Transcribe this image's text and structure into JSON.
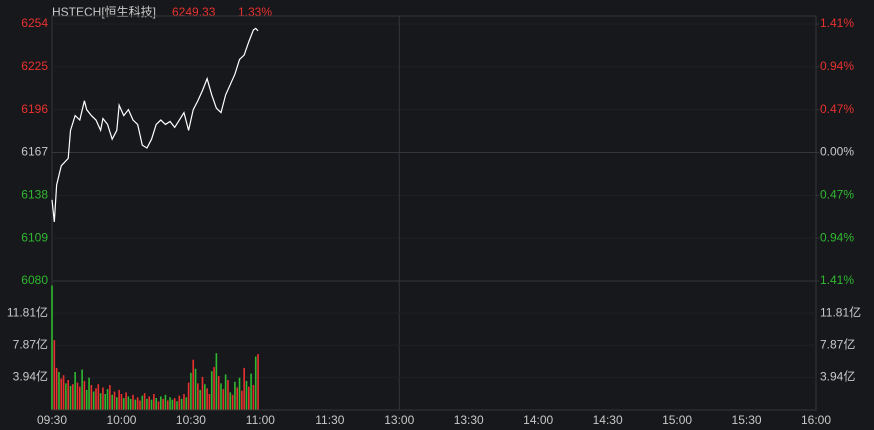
{
  "chart_data": [
    {
      "type": "line",
      "title": "HSTECH[恒生科技]",
      "last": 6249.33,
      "change": {
        "value": 1.33,
        "label": "1.33%"
      },
      "color": "#ffffff",
      "x": [
        0,
        1,
        2,
        4,
        7,
        8,
        10,
        12,
        14,
        15,
        17,
        19,
        21,
        22,
        24,
        26,
        28,
        29,
        31,
        33,
        35,
        37,
        39,
        41,
        43,
        45,
        47,
        49,
        51,
        53,
        55,
        57,
        59,
        61,
        63,
        65,
        67,
        69,
        71,
        73,
        75,
        77,
        79,
        81,
        83,
        85,
        87,
        88,
        89
      ],
      "values": [
        6135,
        6120,
        6145,
        6158,
        6163,
        6182,
        6192,
        6189,
        6202,
        6196,
        6192,
        6189,
        6182,
        6190,
        6186,
        6176,
        6182,
        6199,
        6192,
        6196,
        6189,
        6186,
        6172,
        6170,
        6176,
        6186,
        6189,
        6186,
        6188,
        6184,
        6189,
        6194,
        6182,
        6196,
        6202,
        6209,
        6217,
        6206,
        6197,
        6194,
        6206,
        6213,
        6220,
        6230,
        6233,
        6242,
        6250,
        6251,
        6249.33
      ],
      "xlim": [
        0,
        330
      ],
      "xticks": [
        {
          "value": 0,
          "label": "09:30"
        },
        {
          "value": 30,
          "label": "10:00"
        },
        {
          "value": 60,
          "label": "10:30"
        },
        {
          "value": 90,
          "label": "11:00"
        },
        {
          "value": 120,
          "label": "11:30"
        },
        {
          "value": 150,
          "label": "13:00"
        },
        {
          "value": 180,
          "label": "13:30"
        },
        {
          "value": 210,
          "label": "14:00"
        },
        {
          "value": 240,
          "label": "14:30"
        },
        {
          "value": 270,
          "label": "15:00"
        },
        {
          "value": 300,
          "label": "15:30"
        },
        {
          "value": 330,
          "label": "16:00"
        }
      ],
      "ylim": [
        6080,
        6254
      ],
      "yticks": [
        6254,
        6225,
        6196,
        6167,
        6138,
        6109,
        6080
      ],
      "y2lim": [
        -1.41,
        1.41
      ],
      "y2ticks": [
        {
          "value": 1.41,
          "label": "1.41%"
        },
        {
          "value": 0.94,
          "label": "0.94%"
        },
        {
          "value": 0.47,
          "label": "0.47%"
        },
        {
          "value": 0,
          "label": "0.00%"
        },
        {
          "value": -0.47,
          "label": "0.47%"
        },
        {
          "value": -0.94,
          "label": "0.94%"
        },
        {
          "value": -1.41,
          "label": "1.41%"
        }
      ],
      "up_color": "#e8312f",
      "down_color": "#30b830"
    },
    {
      "type": "bar",
      "values": [
        15.2,
        8.5,
        5.1,
        4.6,
        3.8,
        4.2,
        3.2,
        3.6,
        2.9,
        3.1,
        4.6,
        3.3,
        2.8,
        4.9,
        3.5,
        2.4,
        3.9,
        3.0,
        2.2,
        2.6,
        3.1,
        2.0,
        2.7,
        1.9,
        2.5,
        3.0,
        1.8,
        2.2,
        1.5,
        2.4,
        1.9,
        1.4,
        2.1,
        1.6,
        1.3,
        1.8,
        1.2,
        1.5,
        1.1,
        1.7,
        2.0,
        1.3,
        1.6,
        1.2,
        1.9,
        1.4,
        1.0,
        1.6,
        1.3,
        1.8,
        1.1,
        1.5,
        1.2,
        1.4,
        1.0,
        1.7,
        1.3,
        1.9,
        1.5,
        3.3,
        4.5,
        6.1,
        5.0,
        3.2,
        2.4,
        4.0,
        3.1,
        2.6,
        1.9,
        4.7,
        5.2,
        6.9,
        4.1,
        3.2,
        2.5,
        4.3,
        3.6,
        2.1,
        1.8,
        3.4,
        2.7,
        3.9,
        2.3,
        5.1,
        3.5,
        2.8,
        4.4,
        3.0,
        6.5,
        6.8
      ],
      "colors": [
        "#30b830",
        "#e8312f",
        "#e8312f",
        "#30b830",
        "#e8312f",
        "#e8312f",
        "#30b830",
        "#e8312f",
        "#30b830",
        "#e8312f",
        "#30b830",
        "#e8312f",
        "#e8312f",
        "#30b830",
        "#e8312f",
        "#30b830",
        "#30b830",
        "#e8312f",
        "#30b830",
        "#e8312f",
        "#e8312f",
        "#30b830",
        "#e8312f",
        "#30b830",
        "#30b830",
        "#e8312f",
        "#30b830",
        "#e8312f",
        "#30b830",
        "#e8312f",
        "#e8312f",
        "#30b830",
        "#e8312f",
        "#30b830",
        "#30b830",
        "#e8312f",
        "#30b830",
        "#e8312f",
        "#e8312f",
        "#30b830",
        "#e8312f",
        "#30b830",
        "#e8312f",
        "#30b830",
        "#e8312f",
        "#30b830",
        "#e8312f",
        "#30b830",
        "#e8312f",
        "#30b830",
        "#e8312f",
        "#30b830",
        "#30b830",
        "#e8312f",
        "#30b830",
        "#e8312f",
        "#30b830",
        "#e8312f",
        "#30b830",
        "#e8312f",
        "#30b830",
        "#e8312f",
        "#30b830",
        "#e8312f",
        "#30b830",
        "#e8312f",
        "#30b830",
        "#e8312f",
        "#e8312f",
        "#30b830",
        "#e8312f",
        "#30b830",
        "#e8312f",
        "#30b830",
        "#e8312f",
        "#30b830",
        "#e8312f",
        "#30b830",
        "#e8312f",
        "#30b830",
        "#e8312f",
        "#30b830",
        "#e8312f",
        "#e8312f",
        "#30b830",
        "#e8312f",
        "#30b830",
        "#e8312f",
        "#30b830",
        "#e8312f"
      ],
      "ylim": [
        0,
        15.75
      ],
      "yticks": [
        {
          "value": 11.81,
          "label": "11.81亿"
        },
        {
          "value": 7.87,
          "label": "7.87亿"
        },
        {
          "value": 3.94,
          "label": "3.94亿"
        }
      ]
    }
  ]
}
